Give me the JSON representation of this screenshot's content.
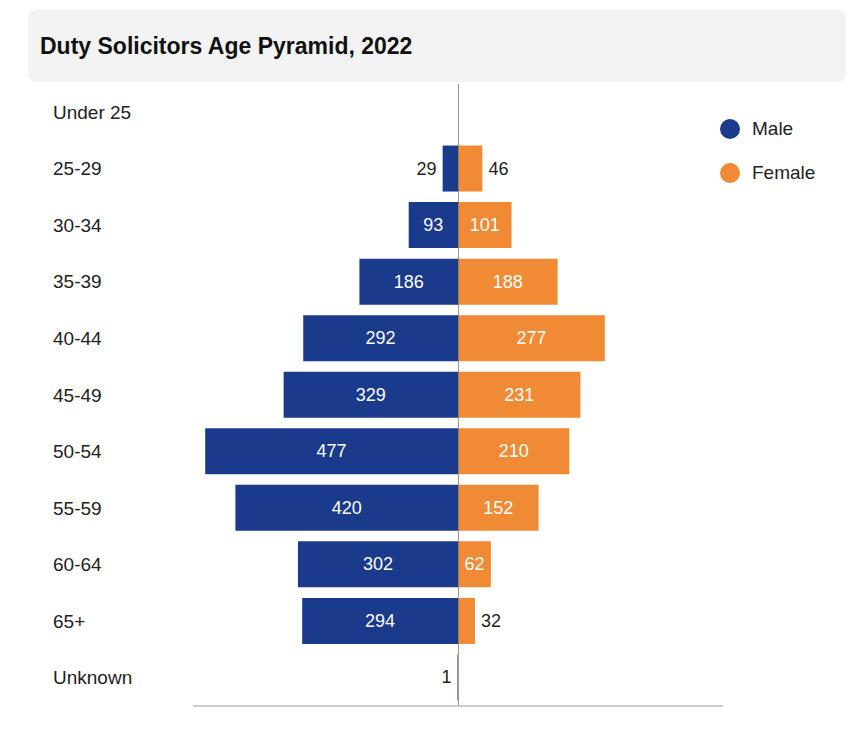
{
  "chart_data": {
    "type": "bar",
    "title": "Duty Solicitors Age Pyramid, 2022",
    "orientation": "horizontal",
    "categories": [
      "Under 25",
      "25-29",
      "30-34",
      "35-39",
      "40-44",
      "45-49",
      "50-54",
      "55-59",
      "60-64",
      "65+",
      "Unknown"
    ],
    "series": [
      {
        "name": "Male",
        "color": "#1a3a8c",
        "values": [
          0,
          29,
          93,
          186,
          292,
          329,
          477,
          420,
          302,
          294,
          1
        ]
      },
      {
        "name": "Female",
        "color": "#f08a35",
        "values": [
          0,
          46,
          101,
          188,
          277,
          231,
          210,
          152,
          62,
          32,
          0
        ]
      }
    ],
    "xlim": [
      0,
      500
    ],
    "tick_labels": "y",
    "data_labels": true,
    "legend": "upper right"
  }
}
